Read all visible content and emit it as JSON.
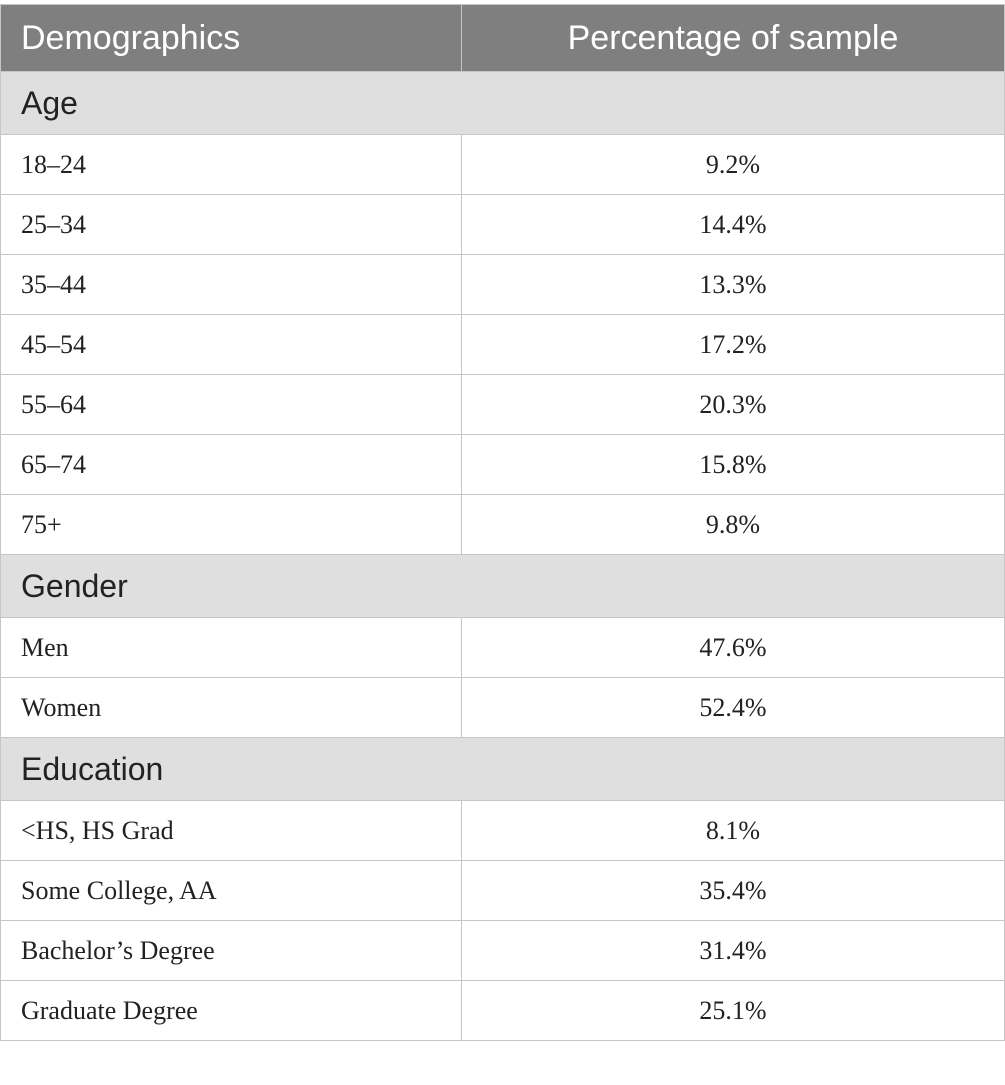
{
  "table": {
    "header": [
      "Demographics",
      "Percentage of sample"
    ],
    "sections": [
      {
        "title": "Age",
        "rows": [
          [
            "18–24",
            "9.2%"
          ],
          [
            "25–34",
            "14.4%"
          ],
          [
            "35–44",
            "13.3%"
          ],
          [
            "45–54",
            "17.2%"
          ],
          [
            "55–64",
            "20.3%"
          ],
          [
            "65–74",
            "15.8%"
          ],
          [
            "75+",
            "9.8%"
          ]
        ]
      },
      {
        "title": "Gender",
        "rows": [
          [
            "Men",
            "47.6%"
          ],
          [
            "Women",
            "52.4%"
          ]
        ]
      },
      {
        "title": "Education",
        "rows": [
          [
            "<HS, HS Grad",
            "8.1%"
          ],
          [
            "Some College, AA",
            "35.4%"
          ],
          [
            "Bachelor’s Degree",
            "31.4%"
          ],
          [
            "Graduate Degree",
            "25.1%"
          ]
        ]
      }
    ]
  }
}
